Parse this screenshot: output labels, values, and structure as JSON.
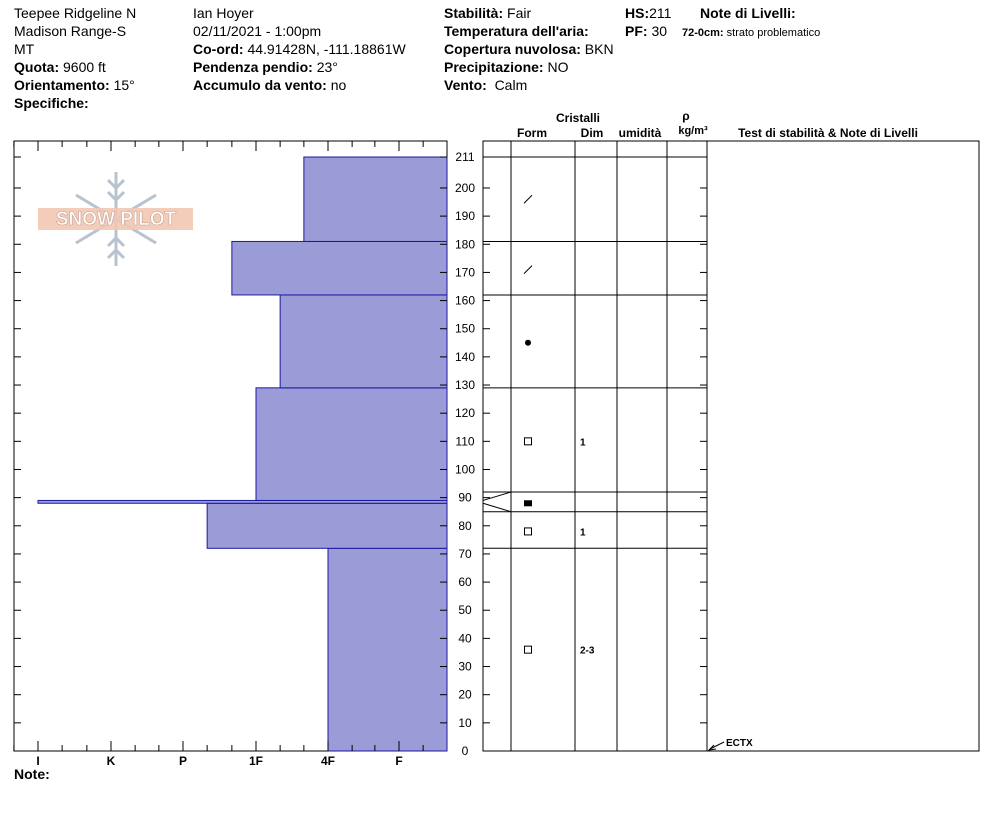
{
  "header": {
    "location_line1": "Teepee Ridgeline N",
    "location_line2": "Madison Range-S",
    "location_line3": "MT",
    "observer": "Ian Hoyer",
    "datetime": "02/11/2021 - 1:00pm",
    "quota_label": "Quota:",
    "quota_value": "9600 ft",
    "coord_label": "Co-ord:",
    "coord_value": "44.91428N, -111.18861W",
    "orient_label": "Orientamento:",
    "orient_value": "15°",
    "slope_label": "Pendenza pendio:",
    "slope_value": "23°",
    "wind_load_label": "Accumulo da vento:",
    "wind_load_value": "no",
    "spec_label": "Specifiche:",
    "stab_label": "Stabilità:",
    "stab_value": "Fair",
    "temp_label": "Temperatura dell'aria:",
    "cloud_label": "Copertura nuvolosa:",
    "cloud_value": "BKN",
    "precip_label": "Precipitazione:",
    "precip_value": "NO",
    "wind_label": "Vento:",
    "wind_value": "Calm",
    "hs_label": "HS:",
    "hs_value": "211",
    "pf_label": "PF:",
    "pf_value": "30",
    "notes_label": "Note di Livelli:",
    "notes_depth": "72-0cm:",
    "notes_text": "strato problematico",
    "note_label": "Note:"
  },
  "watermark": {
    "text": "SNOW PILOT"
  },
  "columns": {
    "cristalli": "Cristalli",
    "form": "Form",
    "dim": "Dim",
    "umidita": "umidità",
    "rho": "ρ",
    "density_unit": "kg/m³",
    "stability": "Test di stabilità & Note di Livelli"
  },
  "colors": {
    "fill": "#9b9bd8",
    "stroke": "#1a1aa0"
  },
  "chart_data": {
    "type": "bar",
    "orientation": "horizontal",
    "y_axis": {
      "label": "",
      "range": [
        0,
        211
      ],
      "ticks": [
        0,
        10,
        20,
        30,
        40,
        50,
        60,
        70,
        80,
        90,
        100,
        110,
        120,
        130,
        140,
        150,
        160,
        170,
        180,
        190,
        200,
        211
      ]
    },
    "x_axis": {
      "label": "",
      "categories": [
        "I",
        "K",
        "P",
        "1F",
        "4F",
        "F"
      ]
    },
    "layers": [
      {
        "bottom": 0,
        "top": 72,
        "hardness": "4F"
      },
      {
        "bottom": 72,
        "top": 88,
        "hardness": "P+"
      },
      {
        "bottom": 88,
        "top": 89,
        "hardness": "I"
      },
      {
        "bottom": 89,
        "top": 129,
        "hardness": "1F"
      },
      {
        "bottom": 129,
        "top": 162,
        "hardness": "1F+"
      },
      {
        "bottom": 162,
        "top": 181,
        "hardness": "1F-"
      },
      {
        "bottom": 181,
        "top": 211,
        "hardness": "4F-"
      }
    ],
    "grain_layer_boundaries": [
      0,
      72,
      85,
      92,
      129,
      162,
      181,
      211
    ],
    "grains": [
      {
        "depth": 196,
        "form": "slash"
      },
      {
        "depth": 171,
        "form": "slash"
      },
      {
        "depth": 145,
        "form": "dot"
      },
      {
        "depth": 110,
        "form": "square",
        "size": "1"
      },
      {
        "depth": 88,
        "form": "filled-square"
      },
      {
        "depth": 78,
        "form": "square",
        "size": "1"
      },
      {
        "depth": 36,
        "form": "square",
        "size": "2-3"
      }
    ],
    "stability_tests": [
      {
        "depth": 0,
        "label": "ECTX"
      }
    ]
  }
}
